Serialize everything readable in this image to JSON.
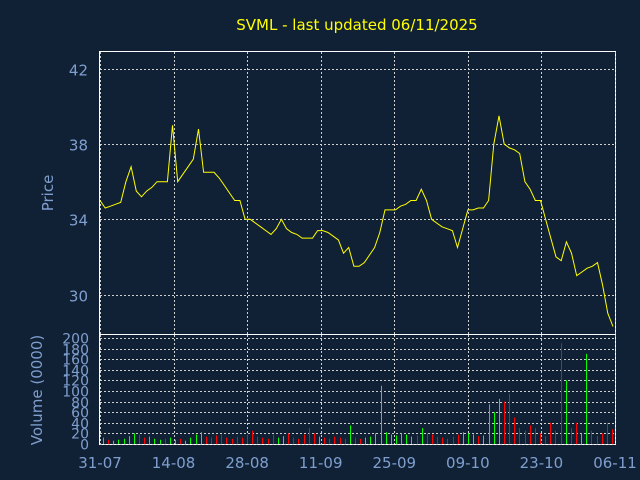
{
  "chart_data": [
    {
      "type": "line",
      "title": "SVML - last updated 06/11/2025",
      "ylabel": "Price",
      "ylim": [
        27.9,
        42.9
      ],
      "yticks": [
        30,
        34,
        38,
        42
      ],
      "xtick_labels": [
        "31-07",
        "14-08",
        "28-08",
        "11-09",
        "25-09",
        "09-10",
        "23-10",
        "06-11"
      ],
      "grid": true,
      "line_color": "#ffff00",
      "y": [
        35.0,
        34.6,
        34.7,
        34.8,
        34.9,
        36.0,
        36.8,
        35.5,
        35.2,
        35.5,
        35.7,
        36.0,
        36.0,
        36.0,
        39.0,
        36.0,
        36.4,
        36.8,
        37.2,
        38.8,
        36.5,
        36.5,
        36.5,
        36.2,
        35.8,
        35.4,
        35.0,
        35.0,
        34.0,
        34.0,
        33.8,
        33.6,
        33.4,
        33.2,
        33.5,
        34.0,
        33.5,
        33.3,
        33.2,
        33.0,
        33.0,
        33.0,
        33.4,
        33.4,
        33.3,
        33.1,
        32.9,
        32.2,
        32.5,
        31.5,
        31.5,
        31.7,
        32.1,
        32.5,
        33.3,
        34.5,
        34.5,
        34.5,
        34.7,
        34.8,
        35.0,
        35.0,
        35.6,
        35.0,
        34.0,
        33.8,
        33.6,
        33.5,
        33.4,
        32.5,
        33.5,
        34.5,
        34.5,
        34.6,
        34.6,
        35.0,
        38.0,
        39.5,
        38.0,
        37.8,
        37.7,
        37.5,
        36.0,
        35.6,
        35.0,
        35.0,
        34.0,
        33.0,
        32.0,
        31.8,
        32.8,
        32.2,
        31.0,
        31.2,
        31.4,
        31.5,
        31.7,
        30.5,
        29.0,
        28.3
      ]
    },
    {
      "type": "bar",
      "ylabel": "Volume (0000)",
      "ylim": [
        0,
        200
      ],
      "yticks": [
        0,
        20,
        40,
        60,
        80,
        100,
        120,
        140,
        160,
        180,
        200
      ],
      "grid": true,
      "up_color": "#00ff00",
      "down_color": "#ff0000",
      "values": [
        12,
        8,
        6,
        8,
        10,
        15,
        20,
        18,
        12,
        14,
        10,
        8,
        10,
        12,
        8,
        10,
        6,
        12,
        18,
        22,
        14,
        12,
        16,
        18,
        12,
        10,
        14,
        12,
        18,
        25,
        14,
        12,
        10,
        18,
        12,
        15,
        20,
        12,
        10,
        18,
        30,
        20,
        14,
        12,
        10,
        14,
        12,
        10,
        35,
        12,
        10,
        12,
        14,
        20,
        110,
        22,
        18,
        16,
        20,
        18,
        14,
        16,
        30,
        20,
        18,
        14,
        12,
        10,
        14,
        18,
        22,
        20,
        18,
        15,
        16,
        75,
        60,
        85,
        80,
        95,
        50,
        30,
        25,
        35,
        30,
        20,
        15,
        40,
        25,
        190,
        120,
        30,
        40,
        20,
        170,
        25,
        15,
        20,
        40,
        28
      ],
      "direction": [
        "u",
        "d",
        "u",
        "u",
        "u",
        "u",
        "u",
        "d",
        "d",
        "u",
        "u",
        "u",
        "d",
        "u",
        "u",
        "d",
        "u",
        "u",
        "u",
        "u",
        "d",
        "d",
        "d",
        "d",
        "d",
        "d",
        "d",
        "d",
        "d",
        "d",
        "d",
        "d",
        "d",
        "d",
        "u",
        "u",
        "d",
        "d",
        "d",
        "d",
        "d",
        "d",
        "u",
        "d",
        "d",
        "d",
        "d",
        "d",
        "u",
        "d",
        "d",
        "u",
        "u",
        "u",
        "u",
        "u",
        "u",
        "u",
        "u",
        "u",
        "u",
        "d",
        "u",
        "d",
        "d",
        "d",
        "d",
        "d",
        "d",
        "d",
        "u",
        "u",
        "u",
        "d",
        "u",
        "u",
        "u",
        "u",
        "d",
        "d",
        "d",
        "d",
        "d",
        "d",
        "d",
        "d",
        "d",
        "d",
        "d",
        "d",
        "u",
        "d",
        "d",
        "u",
        "u",
        "d",
        "d",
        "d",
        "d",
        "d"
      ]
    }
  ]
}
